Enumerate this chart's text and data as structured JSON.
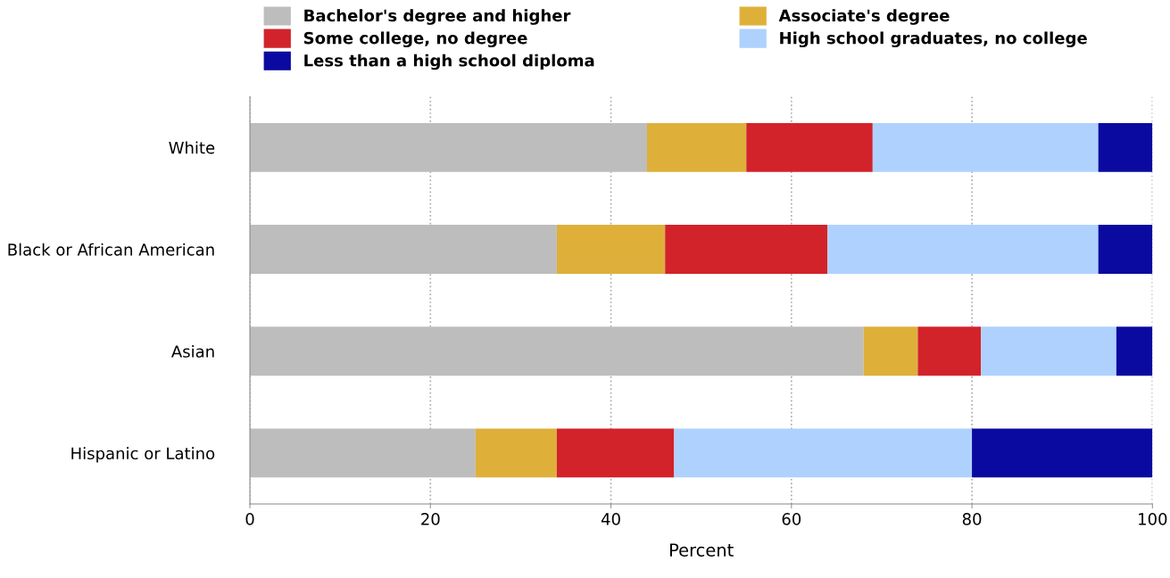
{
  "chart_data": {
    "type": "bar",
    "orientation": "horizontal",
    "stacked": true,
    "xlabel": "Percent",
    "categories": [
      "White",
      "Black or African American",
      "Asian",
      "Hispanic or Latino"
    ],
    "series": [
      {
        "name": "Bachelor's degree and higher",
        "color": "#bdbdbd",
        "values": [
          44,
          34,
          68,
          25
        ]
      },
      {
        "name": "Associate's degree",
        "color": "#deb03a",
        "values": [
          11,
          12,
          6,
          9
        ]
      },
      {
        "name": "Some college, no degree",
        "color": "#d2232a",
        "values": [
          14,
          18,
          7,
          13
        ]
      },
      {
        "name": "High school graduates, no college",
        "color": "#afd1fe",
        "values": [
          25,
          30,
          15,
          33
        ]
      },
      {
        "name": "Less than a high school diploma",
        "color": "#0b0aa0",
        "values": [
          6,
          6,
          4,
          20
        ]
      }
    ],
    "xlim": [
      0,
      100
    ],
    "xticks": [
      0,
      20,
      40,
      60,
      80,
      100
    ],
    "grid": "x",
    "legend": "top"
  }
}
